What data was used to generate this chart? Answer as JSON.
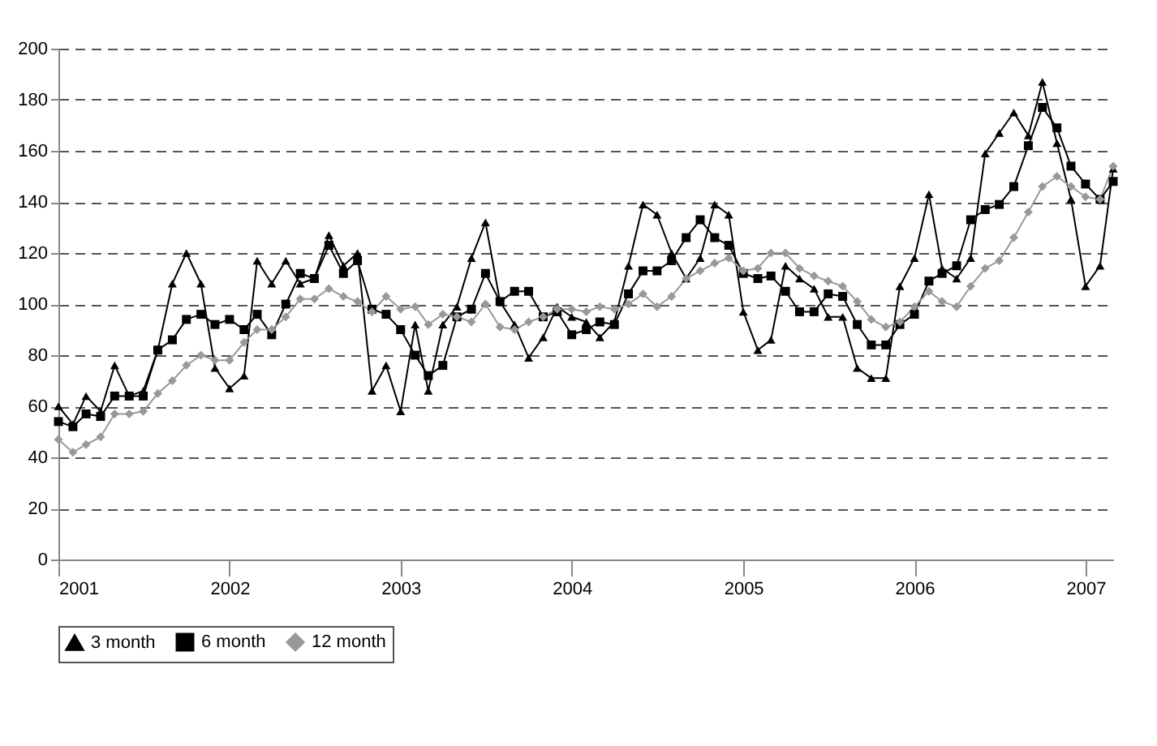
{
  "chart_data": {
    "type": "line",
    "x": [
      "2001-01",
      "2001-02",
      "2001-03",
      "2001-04",
      "2001-05",
      "2001-06",
      "2001-07",
      "2001-08",
      "2001-09",
      "2001-10",
      "2001-11",
      "2001-12",
      "2002-01",
      "2002-02",
      "2002-03",
      "2002-04",
      "2002-05",
      "2002-06",
      "2002-07",
      "2002-08",
      "2002-09",
      "2002-10",
      "2002-11",
      "2002-12",
      "2003-01",
      "2003-02",
      "2003-03",
      "2003-04",
      "2003-05",
      "2003-06",
      "2003-07",
      "2003-08",
      "2003-09",
      "2003-10",
      "2003-11",
      "2003-12",
      "2004-01",
      "2004-02",
      "2004-03",
      "2004-04",
      "2004-05",
      "2004-06",
      "2004-07",
      "2004-08",
      "2004-09",
      "2004-10",
      "2004-11",
      "2004-12",
      "2005-01",
      "2005-02",
      "2005-03",
      "2005-04",
      "2005-05",
      "2005-06",
      "2005-07",
      "2005-08",
      "2005-09",
      "2005-10",
      "2005-11",
      "2005-12",
      "2006-01",
      "2006-02",
      "2006-03",
      "2006-04",
      "2006-05",
      "2006-06",
      "2006-07",
      "2006-08",
      "2006-09",
      "2006-10",
      "2006-11",
      "2006-12",
      "2007-01",
      "2007-02",
      "2007-03"
    ],
    "series": [
      {
        "name": "3 month",
        "color": "#000000",
        "marker": "triangle",
        "values": [
          60,
          53,
          64,
          58,
          76,
          64,
          66,
          82,
          108,
          120,
          108,
          75,
          67,
          72,
          117,
          108,
          117,
          108,
          110,
          127,
          115,
          120,
          66,
          76,
          58,
          92,
          66,
          92,
          99,
          118,
          132,
          101,
          92,
          79,
          87,
          99,
          95,
          93,
          87,
          93,
          115,
          139,
          135,
          120,
          110,
          118,
          139,
          135,
          97,
          82,
          86,
          115,
          110,
          106,
          95,
          95,
          75,
          71,
          71,
          107,
          118,
          143,
          114,
          110,
          118,
          159,
          167,
          175,
          166,
          187,
          163,
          141,
          107,
          115,
          153
        ]
      },
      {
        "name": "6 month",
        "color": "#000000",
        "marker": "square",
        "values": [
          54,
          52,
          57,
          56,
          64,
          64,
          64,
          82,
          86,
          94,
          96,
          92,
          94,
          90,
          96,
          88,
          100,
          112,
          110,
          123,
          112,
          117,
          98,
          96,
          90,
          80,
          72,
          76,
          95,
          98,
          112,
          101,
          105,
          105,
          95,
          97,
          88,
          90,
          93,
          92,
          104,
          113,
          113,
          117,
          126,
          133,
          126,
          123,
          112,
          110,
          111,
          105,
          97,
          97,
          104,
          103,
          92,
          84,
          84,
          92,
          96,
          109,
          112,
          115,
          133,
          137,
          139,
          146,
          162,
          177,
          169,
          154,
          147,
          141,
          148
        ]
      },
      {
        "name": "12 month",
        "color": "#999999",
        "marker": "diamond",
        "values": [
          47,
          42,
          45,
          48,
          57,
          57,
          58,
          65,
          70,
          76,
          80,
          78,
          78,
          85,
          90,
          90,
          95,
          102,
          102,
          106,
          103,
          101,
          97,
          103,
          98,
          99,
          92,
          96,
          95,
          93,
          100,
          91,
          90,
          93,
          95,
          98,
          98,
          97,
          99,
          98,
          100,
          104,
          99,
          103,
          110,
          113,
          116,
          118,
          113,
          114,
          120,
          120,
          114,
          111,
          109,
          107,
          101,
          94,
          91,
          93,
          99,
          105,
          101,
          99,
          107,
          114,
          117,
          126,
          136,
          146,
          150,
          146,
          142,
          141,
          154
        ]
      }
    ],
    "xlim": [
      "2001-01",
      "2007-03"
    ],
    "xticks": [
      {
        "value": "2001-01",
        "label": "2001"
      },
      {
        "value": "2002-01",
        "label": "2002"
      },
      {
        "value": "2003-01",
        "label": "2003"
      },
      {
        "value": "2004-01",
        "label": "2004"
      },
      {
        "value": "2005-01",
        "label": "2005"
      },
      {
        "value": "2006-01",
        "label": "2006"
      },
      {
        "value": "2007-01",
        "label": "2007"
      }
    ],
    "ylim": [
      0,
      200
    ],
    "yticks": [
      0,
      20,
      40,
      60,
      80,
      100,
      120,
      140,
      160,
      180,
      200
    ],
    "grid": "y",
    "legend": "bottom"
  }
}
